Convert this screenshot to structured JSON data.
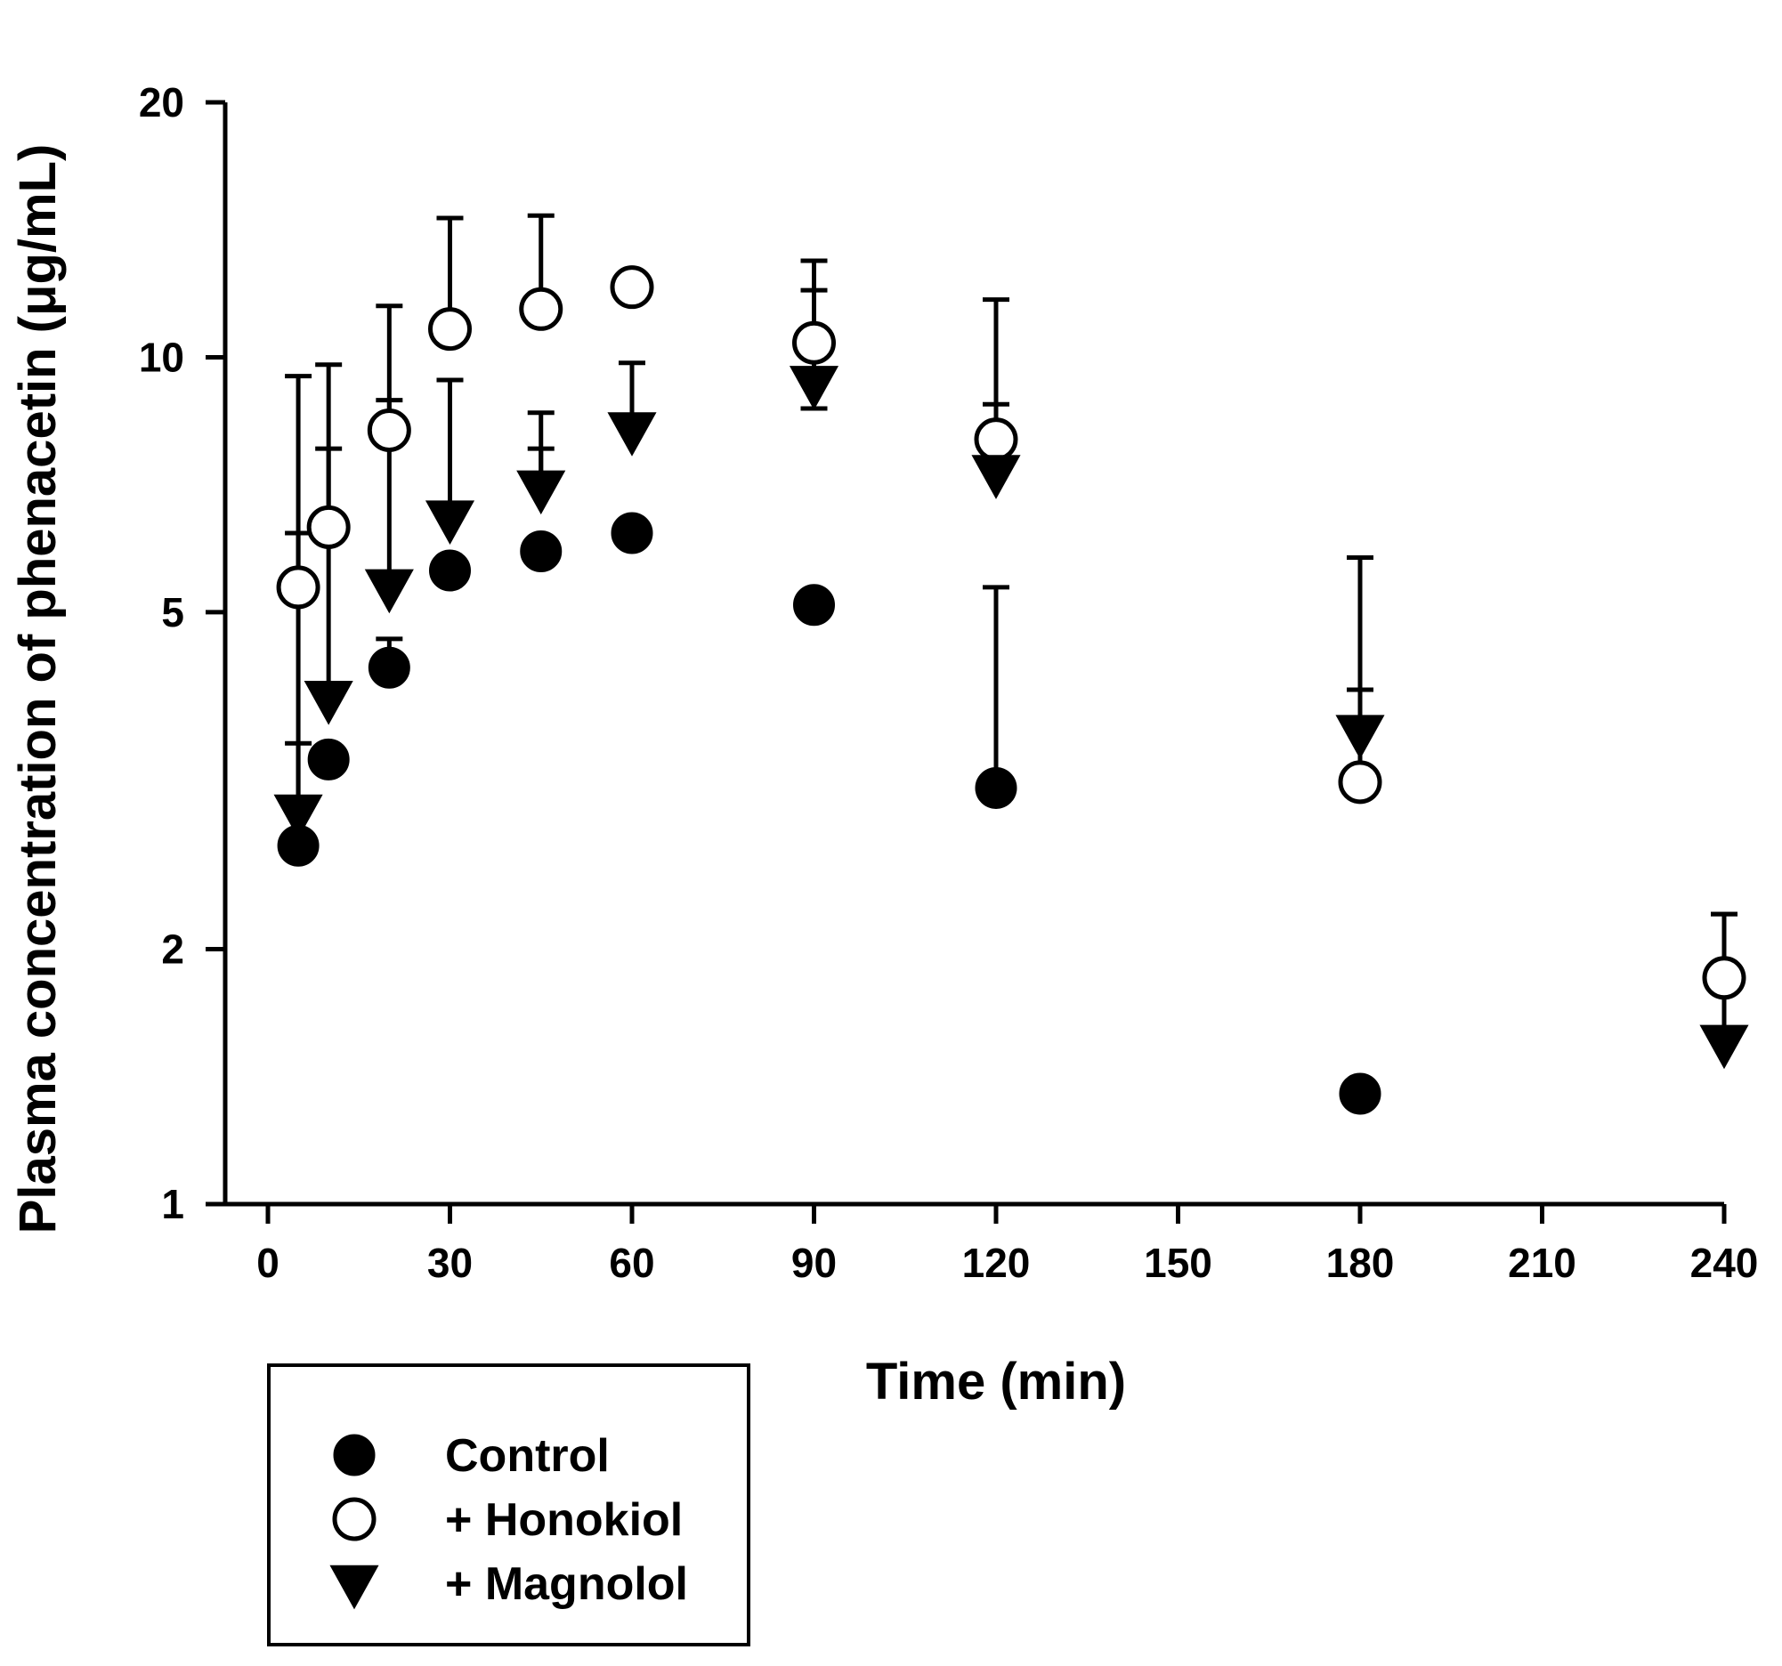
{
  "chart_data": {
    "type": "scatter",
    "xlabel": "Time (min)",
    "ylabel": "Plasma concentration of phenacetin (μg/mL)",
    "yscale": "log",
    "xlim": [
      0,
      240
    ],
    "ylim": [
      1,
      20
    ],
    "x_ticks": [
      0,
      30,
      60,
      90,
      120,
      150,
      180,
      210,
      240
    ],
    "x_tick_labels": [
      "0",
      "30",
      "60",
      "90",
      "120",
      "150",
      "180",
      "210",
      "240"
    ],
    "y_ticks": [
      1,
      2,
      5,
      10,
      20
    ],
    "y_tick_labels": [
      "1",
      "2",
      "5",
      "10",
      "20"
    ],
    "grid": false,
    "legend_position": "bottom-left, below axes",
    "series": [
      {
        "name": "Control",
        "marker": "filled-circle",
        "color": "#000000",
        "x": [
          5,
          10,
          20,
          30,
          45,
          60,
          90,
          120,
          180
        ],
        "y": [
          2.65,
          3.35,
          4.3,
          5.6,
          5.9,
          6.2,
          5.1,
          3.1,
          1.35
        ],
        "error_upper": [
          null,
          null,
          4.65,
          null,
          null,
          null,
          null,
          5.35,
          null
        ]
      },
      {
        "name": "+ Honokiol",
        "marker": "open-circle",
        "color": "#000000",
        "x": [
          5,
          10,
          20,
          30,
          45,
          60,
          90,
          120,
          180,
          240
        ],
        "y": [
          5.35,
          6.3,
          8.2,
          10.8,
          11.4,
          12.1,
          10.4,
          8.0,
          3.15,
          1.85
        ],
        "error_upper": [
          9.5,
          7.8,
          11.5,
          14.6,
          14.7,
          12.4,
          13.0,
          11.7,
          5.8,
          2.2
        ]
      },
      {
        "name": "+ Magnolol",
        "marker": "filled-down-triangle",
        "color": "#000000",
        "x": [
          5,
          10,
          20,
          30,
          45,
          60,
          90,
          120,
          180,
          240
        ],
        "y": [
          2.9,
          3.95,
          5.35,
          6.45,
          7.0,
          8.2,
          9.3,
          7.3,
          3.6,
          1.55
        ],
        "error_upper": [
          6.2,
          9.8,
          8.9,
          9.4,
          8.6,
          9.85,
          12.0,
          8.8,
          4.05,
          2.2
        ],
        "error_lower": [
          3.5,
          null,
          null,
          6.7,
          7.8,
          null,
          8.7,
          null,
          null,
          null
        ]
      }
    ]
  }
}
